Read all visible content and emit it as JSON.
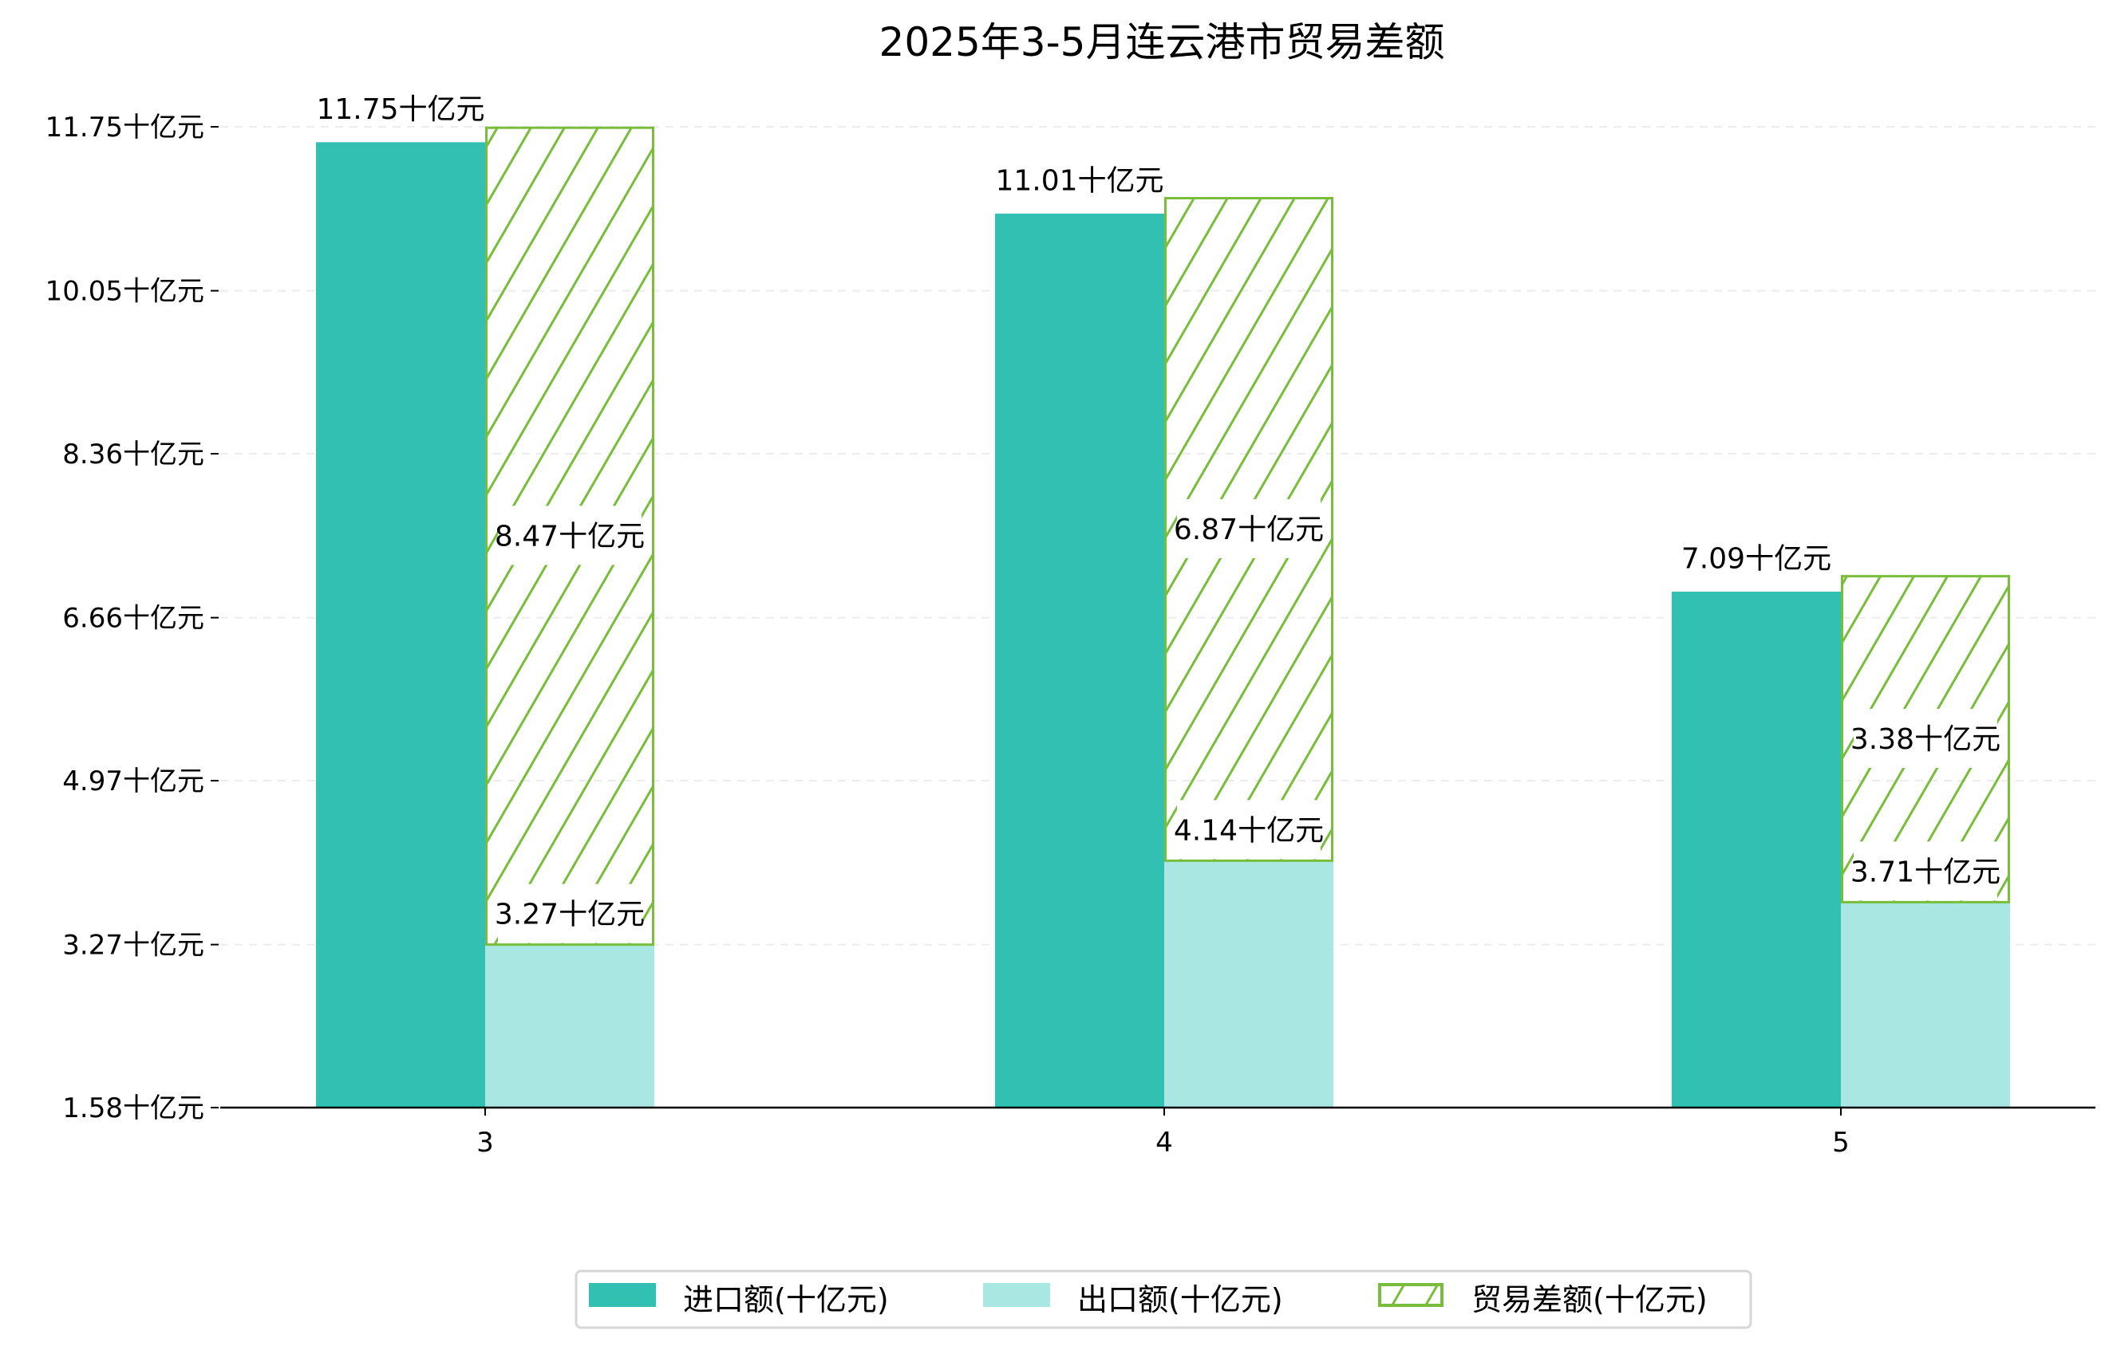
{
  "chart_data": {
    "type": "bar",
    "title": "2025年3-5月连云港市贸易差额",
    "xlabel": "",
    "ylabel": "",
    "categories": [
      "3",
      "4",
      "5"
    ],
    "series": [
      {
        "name": "进口额(十亿元)",
        "values": [
          11.75,
          11.01,
          7.09
        ],
        "color": "#31c0b2",
        "labels": [
          "11.75十亿元",
          "11.01十亿元",
          "7.09十亿元"
        ]
      },
      {
        "name": "出口额(十亿元)",
        "values": [
          3.27,
          4.14,
          3.71
        ],
        "color": "#a9e8e2",
        "labels": [
          "3.27十亿元",
          "4.14十亿元",
          "3.71十亿元"
        ]
      },
      {
        "name": "贸易差额(十亿元)",
        "values": [
          8.47,
          6.87,
          3.38
        ],
        "color": "#78be3c",
        "stacked_on": "出口额(十亿元)",
        "hatch": "/",
        "labels": [
          "8.47十亿元",
          "6.87十亿元",
          "3.38十亿元"
        ]
      }
    ],
    "yticks": [
      1.58,
      3.27,
      4.97,
      6.66,
      8.36,
      10.05,
      11.75
    ],
    "ytick_labels": [
      "1.58十亿元",
      "3.27十亿元",
      "4.97十亿元",
      "6.66十亿元",
      "8.36十亿元",
      "10.05十亿元",
      "11.75十亿元"
    ],
    "ylim": [
      1.58,
      11.75
    ],
    "grid": "y-dashed",
    "legend": "bottom-center"
  }
}
